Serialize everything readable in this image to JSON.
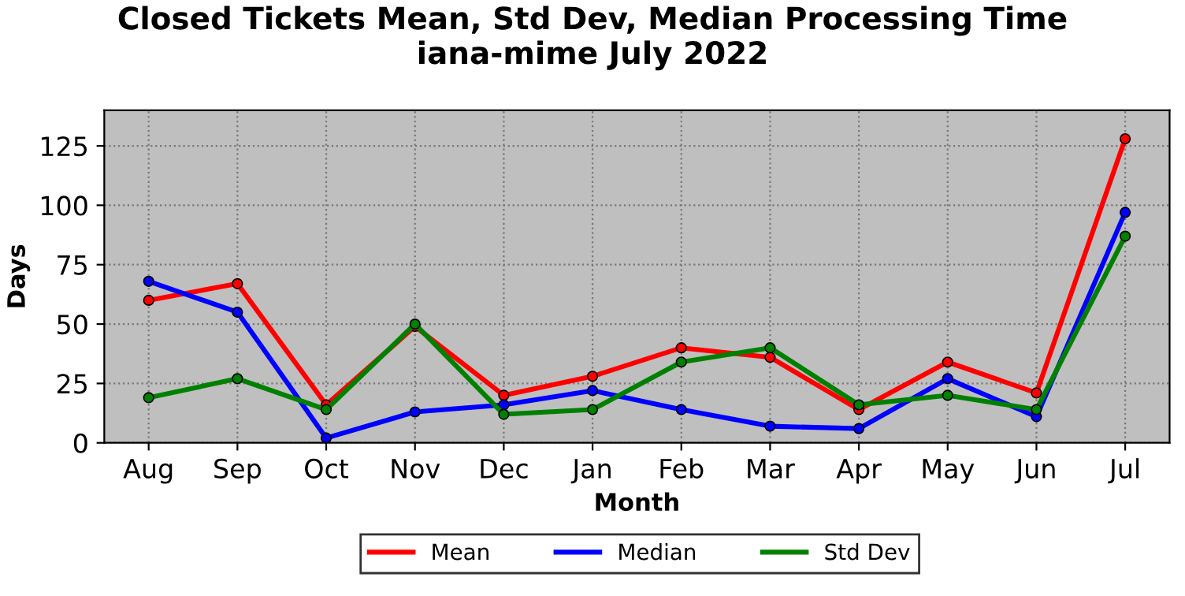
{
  "chart_data": {
    "type": "line",
    "title": "Closed Tickets Mean, Std Dev, Median Processing Time\niana-mime July 2022",
    "xlabel": "Month",
    "ylabel": "Days",
    "categories": [
      "Aug",
      "Sep",
      "Oct",
      "Nov",
      "Dec",
      "Jan",
      "Feb",
      "Mar",
      "Apr",
      "May",
      "Jun",
      "Jul"
    ],
    "series": [
      {
        "name": "Mean",
        "color": "#ff0000",
        "values": [
          60,
          67,
          16,
          49,
          20,
          28,
          40,
          36,
          14,
          34,
          21,
          128
        ]
      },
      {
        "name": "Median",
        "color": "#0000ff",
        "values": [
          68,
          55,
          2,
          13,
          16,
          22,
          14,
          7,
          6,
          27,
          11,
          97
        ]
      },
      {
        "name": "Std Dev",
        "color": "#008000",
        "values": [
          19,
          27,
          14,
          50,
          12,
          14,
          34,
          40,
          16,
          20,
          14,
          87
        ]
      }
    ],
    "ylim": [
      0,
      140
    ],
    "yticks": [
      0,
      25,
      50,
      75,
      100,
      125
    ],
    "grid": true,
    "legend": "bottom",
    "marker": "circle",
    "line_style": "solid"
  }
}
